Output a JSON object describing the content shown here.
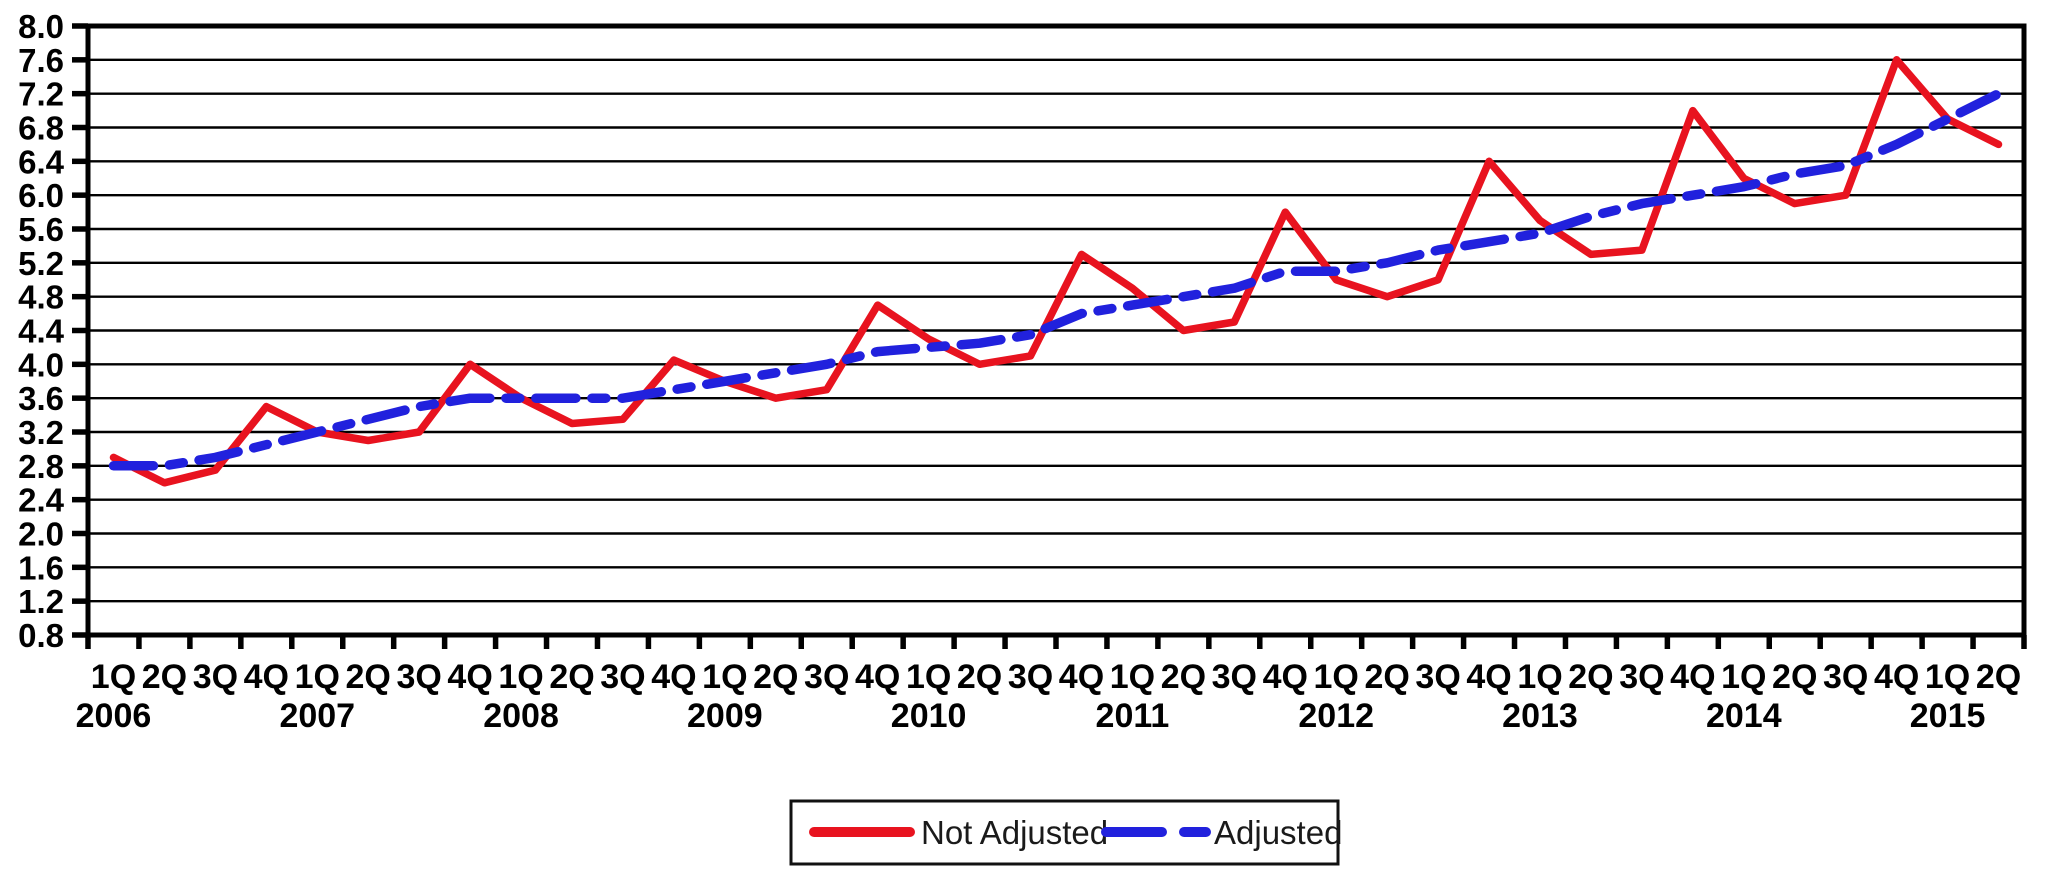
{
  "chart_data": {
    "type": "line",
    "title": "",
    "x_axis": {
      "quarter_cycle": [
        "1Q",
        "2Q",
        "3Q",
        "4Q"
      ],
      "n_points": 38,
      "year_labels": [
        {
          "label": "2006",
          "quarter_index": 0
        },
        {
          "label": "2007",
          "quarter_index": 4
        },
        {
          "label": "2008",
          "quarter_index": 8
        },
        {
          "label": "2009",
          "quarter_index": 12
        },
        {
          "label": "2010",
          "quarter_index": 16
        },
        {
          "label": "2011",
          "quar_note": "",
          "quarter_index": 20
        },
        {
          "label": "2012",
          "quarter_index": 24
        },
        {
          "label": "2013",
          "quarter_index": 28
        },
        {
          "label": "2014",
          "quarter_index": 32
        },
        {
          "label": "2015",
          "quarter_index": 36
        }
      ]
    },
    "y_axis": {
      "min": 0.8,
      "max": 8.0,
      "step": 0.4,
      "tick_labels": [
        "0.8",
        "1.2",
        "1.6",
        "2.0",
        "2.4",
        "2.8",
        "3.2",
        "3.6",
        "4.0",
        "4.4",
        "4.8",
        "5.2",
        "5.6",
        "6.0",
        "6.4",
        "6.8",
        "7.2",
        "7.6",
        "8.0"
      ]
    },
    "grid": "horizontal",
    "legend_position": "bottom-center",
    "axis_color": "#000000",
    "series": [
      {
        "name": "Not Adjusted",
        "style": "solid",
        "color": "#e8131f",
        "values": [
          2.9,
          2.6,
          2.75,
          3.5,
          3.2,
          3.1,
          3.2,
          4.0,
          3.6,
          3.3,
          3.35,
          4.05,
          3.8,
          3.6,
          3.7,
          4.7,
          4.3,
          4.0,
          4.1,
          5.3,
          4.9,
          4.4,
          4.5,
          5.8,
          5.0,
          4.8,
          5.0,
          6.4,
          5.7,
          5.3,
          5.35,
          7.0,
          6.2,
          5.9,
          6.0,
          7.6,
          6.9,
          6.6
        ]
      },
      {
        "name": "Adjusted",
        "style": "dashed",
        "color": "#2121dd",
        "values": [
          2.8,
          2.8,
          2.9,
          3.05,
          3.2,
          3.35,
          3.5,
          3.6,
          3.6,
          3.6,
          3.6,
          3.7,
          3.8,
          3.9,
          4.0,
          4.15,
          4.2,
          4.25,
          4.35,
          4.6,
          4.7,
          4.8,
          4.9,
          5.1,
          5.1,
          5.2,
          5.35,
          5.45,
          5.55,
          5.75,
          5.9,
          6.0,
          6.1,
          6.25,
          6.35,
          6.6,
          6.9,
          7.2
        ]
      }
    ]
  },
  "legend": {
    "items": [
      {
        "label": "Not Adjusted"
      },
      {
        "label": "Adjusted"
      }
    ]
  }
}
